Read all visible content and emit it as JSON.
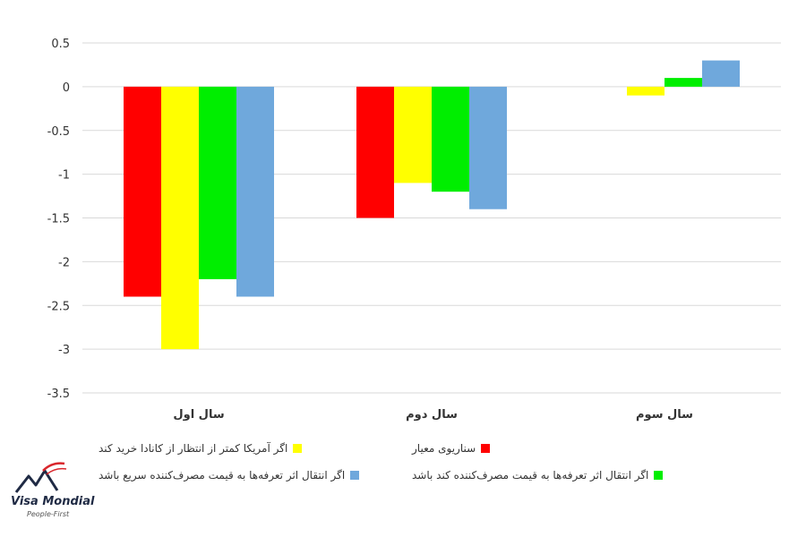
{
  "chart_data": {
    "type": "bar",
    "categories": [
      "سال اول",
      "سال دوم",
      "سال سوم"
    ],
    "series": [
      {
        "name": "سناریوی معیار",
        "color": "#ff0000",
        "values": [
          -2.4,
          -1.5,
          0
        ]
      },
      {
        "name": "اگر آمریکا کمتر از انتظار از کانادا خرید کند",
        "color": "#ffff00",
        "values": [
          -3.0,
          -1.1,
          -0.1
        ]
      },
      {
        "name": "اگر انتقال اثر تعرفه‌ها به قیمت مصرف‌کننده کند باشد",
        "color": "#00ee00",
        "values": [
          -2.2,
          -1.2,
          0.1
        ]
      },
      {
        "name": "اگر انتقال اثر تعرفه‌ها به قیمت مصرف‌کننده سریع باشد",
        "color": "#6fa8dc",
        "values": [
          -2.4,
          -1.4,
          0.3
        ]
      }
    ],
    "ylim": [
      -3.5,
      0.5
    ],
    "yticks": [
      "0.5",
      "0",
      "-0.5",
      "-1",
      "-1.5",
      "-2",
      "-2.5",
      "-3",
      "-3.5"
    ],
    "grid": true,
    "legend_position": "bottom"
  },
  "branding": {
    "logo_text": "Visa Mondial",
    "tagline": "People-First",
    "logo_icon": "mountain-logo-icon"
  }
}
